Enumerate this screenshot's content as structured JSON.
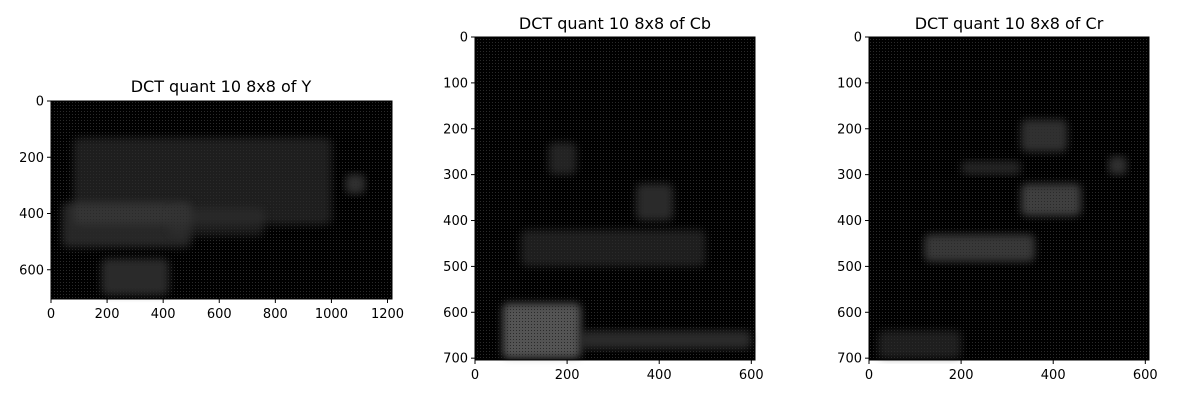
{
  "chart_data": [
    {
      "type": "heatmap",
      "title": "DCT quant 10 8x8 of Y",
      "xlim": [
        0,
        1216
      ],
      "ylim": [
        704,
        0
      ],
      "xticks": [
        0,
        200,
        400,
        600,
        800,
        1000,
        1200
      ],
      "yticks": [
        0,
        200,
        400,
        600
      ],
      "colormap": "gray",
      "block_size": 8,
      "background_color": "#000000",
      "features": [
        {
          "x": [
            80,
            1000
          ],
          "y": [
            130,
            440
          ],
          "level": 0.22
        },
        {
          "x": [
            40,
            500
          ],
          "y": [
            360,
            520
          ],
          "level": 0.28
        },
        {
          "x": [
            180,
            420
          ],
          "y": [
            560,
            690
          ],
          "level": 0.3
        },
        {
          "x": [
            1050,
            1120
          ],
          "y": [
            260,
            330
          ],
          "level": 0.35
        },
        {
          "x": [
            420,
            760
          ],
          "y": [
            380,
            480
          ],
          "level": 0.2
        }
      ]
    },
    {
      "type": "heatmap",
      "title": "DCT quant 10 8x8 of Cb",
      "xlim": [
        0,
        608
      ],
      "ylim": [
        704,
        0
      ],
      "xticks": [
        0,
        200,
        400,
        600
      ],
      "yticks": [
        0,
        100,
        200,
        300,
        400,
        500,
        600,
        700
      ],
      "colormap": "gray",
      "block_size": 8,
      "background_color": "#000000",
      "features": [
        {
          "x": [
            60,
            230
          ],
          "y": [
            580,
            700
          ],
          "level": 0.6
        },
        {
          "x": [
            230,
            600
          ],
          "y": [
            640,
            680
          ],
          "level": 0.3
        },
        {
          "x": [
            100,
            500
          ],
          "y": [
            420,
            500
          ],
          "level": 0.22
        },
        {
          "x": [
            350,
            430
          ],
          "y": [
            320,
            400
          ],
          "level": 0.3
        },
        {
          "x": [
            160,
            220
          ],
          "y": [
            230,
            300
          ],
          "level": 0.25
        }
      ]
    },
    {
      "type": "heatmap",
      "title": "DCT quant 10 8x8 of Cr",
      "xlim": [
        0,
        608
      ],
      "ylim": [
        704,
        0
      ],
      "xticks": [
        0,
        200,
        400,
        600
      ],
      "yticks": [
        0,
        100,
        200,
        300,
        400,
        500,
        600,
        700
      ],
      "colormap": "gray",
      "block_size": 8,
      "background_color": "#000000",
      "features": [
        {
          "x": [
            330,
            460
          ],
          "y": [
            320,
            390
          ],
          "level": 0.45
        },
        {
          "x": [
            120,
            360
          ],
          "y": [
            430,
            490
          ],
          "level": 0.4
        },
        {
          "x": [
            330,
            430
          ],
          "y": [
            180,
            250
          ],
          "level": 0.35
        },
        {
          "x": [
            520,
            560
          ],
          "y": [
            260,
            300
          ],
          "level": 0.35
        },
        {
          "x": [
            200,
            330
          ],
          "y": [
            270,
            300
          ],
          "level": 0.25
        },
        {
          "x": [
            20,
            200
          ],
          "y": [
            640,
            700
          ],
          "level": 0.22
        }
      ]
    }
  ]
}
